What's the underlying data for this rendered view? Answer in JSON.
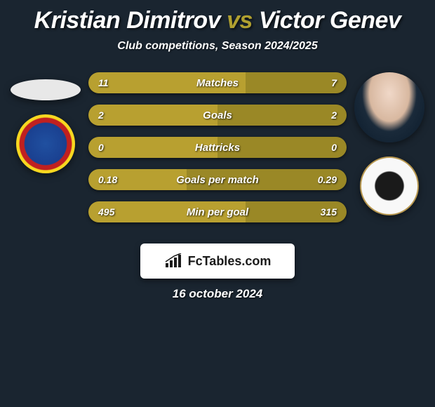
{
  "header": {
    "player1": "Kristian Dimitrov",
    "vs": "vs",
    "player2": "Victor Genev",
    "subtitle": "Club competitions, Season 2024/2025"
  },
  "colors": {
    "background": "#1a2530",
    "accent": "#b8a030",
    "bar_left": "#b8a030",
    "bar_right": "#9a8826",
    "bar_bg_left": "#6a5e20",
    "bar_bg_right": "#5a5018"
  },
  "stats": [
    {
      "label": "Matches",
      "left_val": "11",
      "right_val": "7",
      "left_pct": 61,
      "right_pct": 39
    },
    {
      "label": "Goals",
      "left_val": "2",
      "right_val": "2",
      "left_pct": 50,
      "right_pct": 50
    },
    {
      "label": "Hattricks",
      "left_val": "0",
      "right_val": "0",
      "left_pct": 50,
      "right_pct": 50
    },
    {
      "label": "Goals per match",
      "left_val": "0.18",
      "right_val": "0.29",
      "left_pct": 38,
      "right_pct": 62
    },
    {
      "label": "Min per goal",
      "left_val": "495",
      "right_val": "315",
      "left_pct": 61,
      "right_pct": 39
    }
  ],
  "footer": {
    "site": "FcTables.com",
    "date": "16 october 2024"
  }
}
